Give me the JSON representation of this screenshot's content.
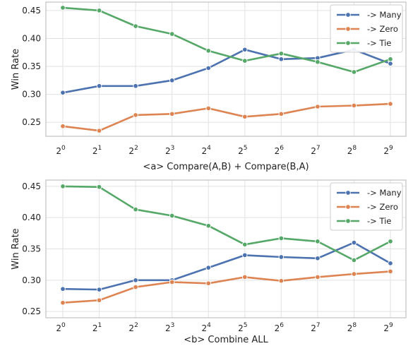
{
  "chart_data": [
    {
      "type": "line",
      "xlabel": "<a> Compare(A,B) + Compare(B,A)",
      "ylabel": "Win Rate",
      "x_base": "2",
      "x_exponents": [
        "0",
        "1",
        "2",
        "3",
        "4",
        "5",
        "6",
        "7",
        "8",
        "9"
      ],
      "ylim": [
        0.225,
        0.465
      ],
      "yticks": [
        0.25,
        0.3,
        0.35,
        0.4,
        0.45
      ],
      "ytick_labels": [
        "0.25",
        "0.30",
        "0.35",
        "0.40",
        "0.45"
      ],
      "grid": true,
      "legend_position": "top-right",
      "series": [
        {
          "name": "-> Many",
          "color": "#4c72b0",
          "values": [
            0.303,
            0.315,
            0.315,
            0.325,
            0.347,
            0.38,
            0.363,
            0.365,
            0.38,
            0.355
          ]
        },
        {
          "name": "-> Zero",
          "color": "#dd8452",
          "values": [
            0.243,
            0.235,
            0.263,
            0.265,
            0.275,
            0.26,
            0.265,
            0.278,
            0.28,
            0.283
          ]
        },
        {
          "name": "-> Tie",
          "color": "#55a868",
          "values": [
            0.455,
            0.45,
            0.422,
            0.408,
            0.378,
            0.36,
            0.373,
            0.358,
            0.34,
            0.363
          ]
        }
      ]
    },
    {
      "type": "line",
      "xlabel": "<b> Combine ALL",
      "ylabel": "Win Rate",
      "x_base": "2",
      "x_exponents": [
        "0",
        "1",
        "2",
        "3",
        "4",
        "5",
        "6",
        "7",
        "8",
        "9"
      ],
      "ylim": [
        0.24,
        0.46
      ],
      "yticks": [
        0.25,
        0.3,
        0.35,
        0.4,
        0.45
      ],
      "ytick_labels": [
        "0.25",
        "0.30",
        "0.35",
        "0.40",
        "0.45"
      ],
      "grid": true,
      "legend_position": "top-right",
      "series": [
        {
          "name": "-> Many",
          "color": "#4c72b0",
          "values": [
            0.286,
            0.285,
            0.3,
            0.3,
            0.32,
            0.34,
            0.337,
            0.335,
            0.36,
            0.327
          ]
        },
        {
          "name": "-> Zero",
          "color": "#dd8452",
          "values": [
            0.264,
            0.268,
            0.289,
            0.297,
            0.295,
            0.305,
            0.299,
            0.305,
            0.31,
            0.314
          ]
        },
        {
          "name": "-> Tie",
          "color": "#55a868",
          "values": [
            0.45,
            0.449,
            0.413,
            0.403,
            0.387,
            0.357,
            0.367,
            0.362,
            0.332,
            0.362
          ]
        }
      ]
    }
  ]
}
